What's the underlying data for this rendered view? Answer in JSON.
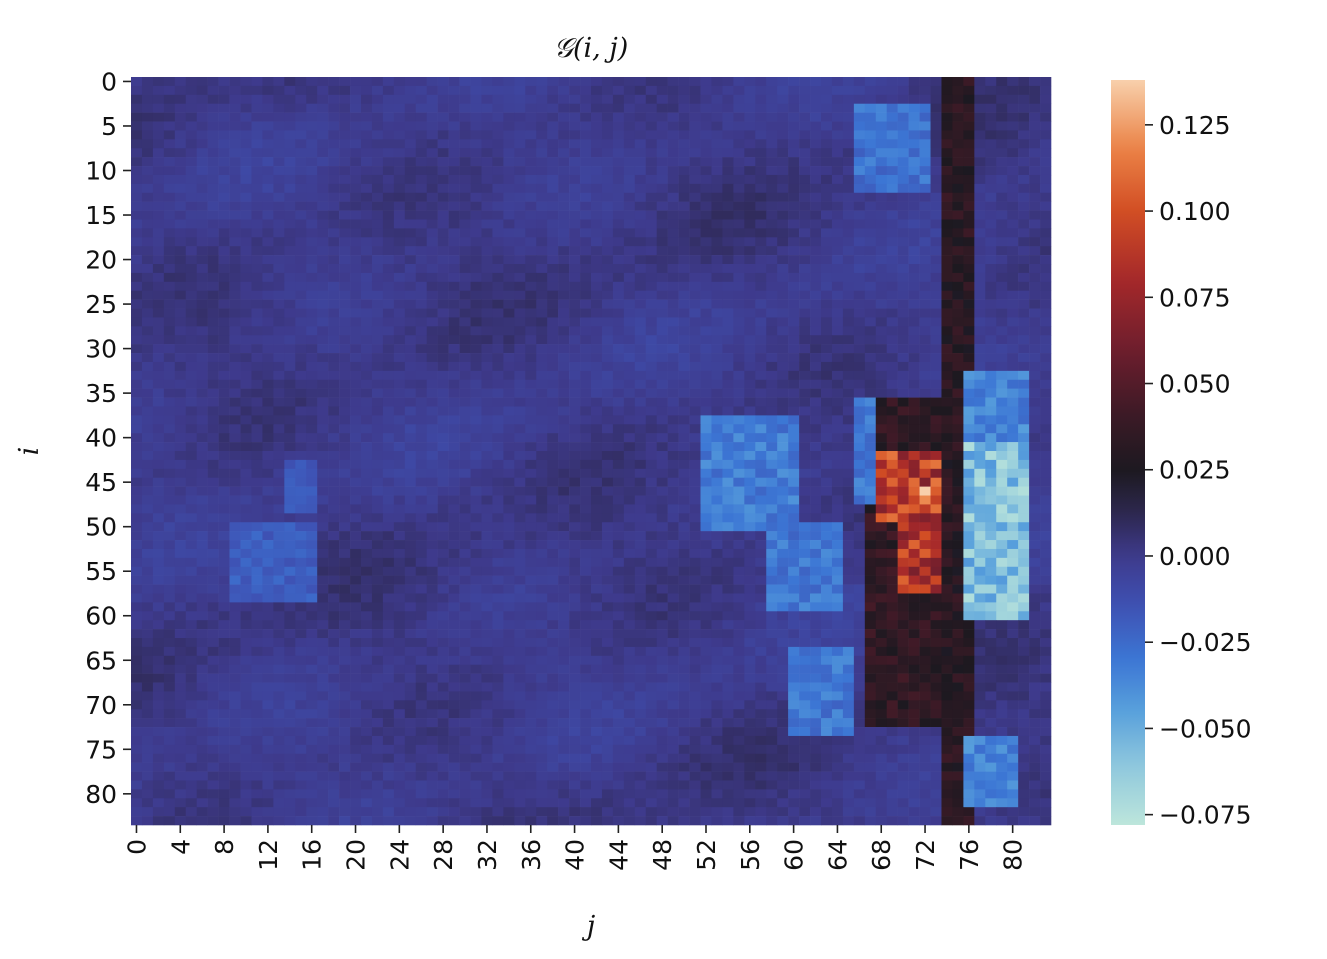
{
  "chart_data": {
    "type": "heatmap",
    "title": "𝒢(i, j)",
    "xlabel": "j",
    "ylabel": "i",
    "rows": 84,
    "cols": 84,
    "x_tick_labels": [
      "0",
      "4",
      "8",
      "12",
      "16",
      "20",
      "24",
      "28",
      "32",
      "36",
      "40",
      "44",
      "48",
      "52",
      "56",
      "60",
      "64",
      "68",
      "72",
      "76",
      "80"
    ],
    "y_tick_labels": [
      "0",
      "5",
      "10",
      "15",
      "20",
      "25",
      "30",
      "35",
      "40",
      "45",
      "50",
      "55",
      "60",
      "65",
      "70",
      "75",
      "80"
    ],
    "colorbar": {
      "vmin": -0.078,
      "vmax": 0.138,
      "tick_values": [
        0.125,
        0.1,
        0.075,
        0.05,
        0.025,
        0.0,
        -0.025,
        -0.05,
        -0.075
      ],
      "tick_labels": [
        "0.125",
        "0.100",
        "0.075",
        "0.050",
        "0.025",
        "0.000",
        "−0.025",
        "−0.050",
        "−0.075"
      ]
    },
    "colormap": "icefire",
    "background_value": 0.0,
    "features": [
      {
        "kind": "dark_column",
        "j": [
          74,
          76
        ],
        "i": [
          0,
          83
        ],
        "value": 0.032
      },
      {
        "kind": "hotspot",
        "i": [
          42,
          49
        ],
        "j": [
          68,
          73
        ],
        "value": 0.09
      },
      {
        "kind": "hotspot",
        "i": [
          50,
          57
        ],
        "j": [
          70,
          73
        ],
        "value": 0.085
      },
      {
        "kind": "peak",
        "i": 46,
        "j": 72,
        "value": 0.138
      },
      {
        "kind": "dark_band",
        "i": [
          36,
          72
        ],
        "j": [
          67,
          74
        ],
        "value": 0.035
      },
      {
        "kind": "cold_region",
        "i": [
          40,
          60
        ],
        "j": [
          76,
          81
        ],
        "value": -0.058
      },
      {
        "kind": "cold_region",
        "i": [
          33,
          40
        ],
        "j": [
          76,
          81
        ],
        "value": -0.035
      },
      {
        "kind": "cold_region",
        "i": [
          38,
          50
        ],
        "j": [
          52,
          60
        ],
        "value": -0.032
      },
      {
        "kind": "cold_region",
        "i": [
          50,
          59
        ],
        "j": [
          58,
          64
        ],
        "value": -0.03
      },
      {
        "kind": "cold_region",
        "i": [
          64,
          73
        ],
        "j": [
          60,
          65
        ],
        "value": -0.03
      },
      {
        "kind": "cold_region",
        "i": [
          3,
          12
        ],
        "j": [
          66,
          72
        ],
        "value": -0.028
      },
      {
        "kind": "cold_region",
        "i": [
          74,
          81
        ],
        "j": [
          76,
          80
        ],
        "value": -0.035
      },
      {
        "kind": "cold_region",
        "i": [
          50,
          58
        ],
        "j": [
          9,
          16
        ],
        "value": -0.02
      },
      {
        "kind": "cold_region",
        "i": [
          43,
          48
        ],
        "j": [
          14,
          16
        ],
        "value": -0.018
      },
      {
        "kind": "cold_region",
        "i": [
          36,
          47
        ],
        "j": [
          66,
          67
        ],
        "value": -0.03
      }
    ]
  }
}
